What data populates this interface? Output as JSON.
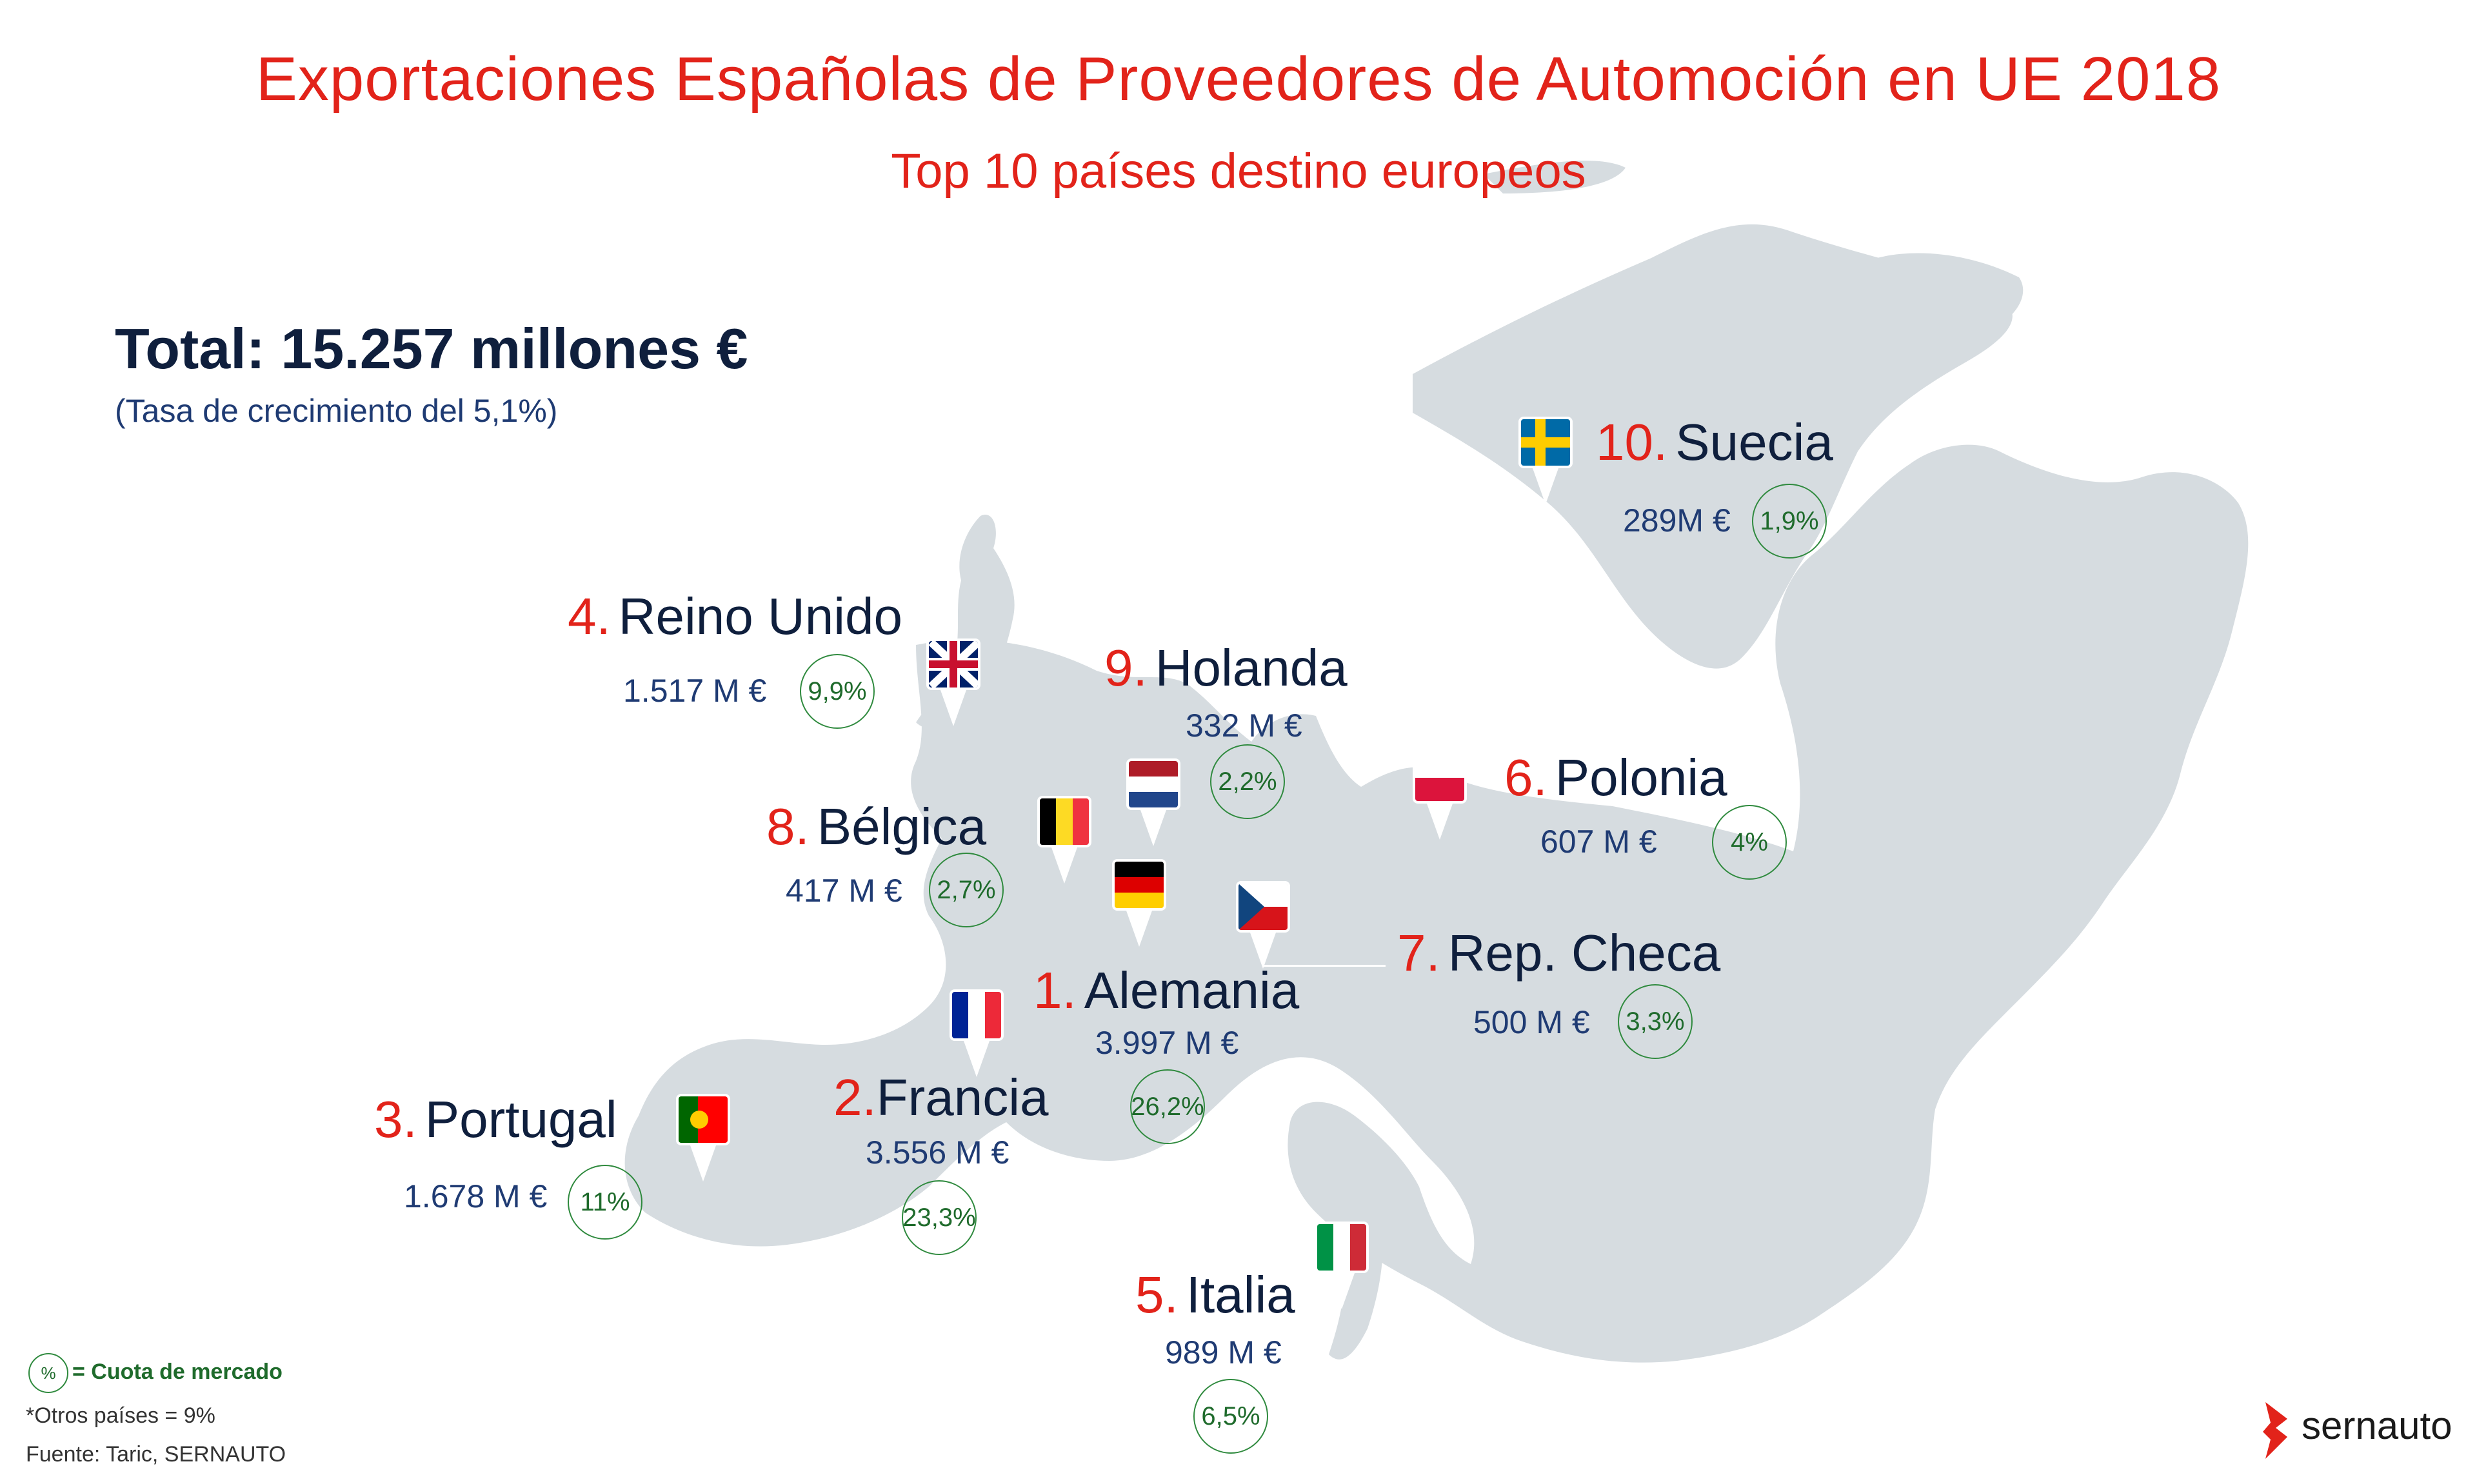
{
  "title": "Exportaciones Españolas de Proveedores de Automoción en UE 2018",
  "subtitle": "Top 10 países destino europeos",
  "total": "Total: 15.257 millones €",
  "growth": "(Tasa de crecimiento del 5,1%)",
  "countries": [
    {
      "rank": "1.",
      "name": "Alemania",
      "value": "3.997 M €",
      "share": "26,2%",
      "flag": "germany"
    },
    {
      "rank": "2.",
      "name": "Francia",
      "value": "3.556 M €",
      "share": "23,3%",
      "flag": "france"
    },
    {
      "rank": "3.",
      "name": "Portugal",
      "value": "1.678 M €",
      "share": "11%",
      "flag": "portugal"
    },
    {
      "rank": "4.",
      "name": "Reino Unido",
      "value": "1.517 M €",
      "share": "9,9%",
      "flag": "united-kingdom"
    },
    {
      "rank": "5.",
      "name": "Italia",
      "value": "989 M €",
      "share": "6,5%",
      "flag": "italy"
    },
    {
      "rank": "6.",
      "name": "Polonia",
      "value": "607 M €",
      "share": "4%",
      "flag": "poland"
    },
    {
      "rank": "7.",
      "name": "Rep. Checa",
      "value": "500 M €",
      "share": "3,3%",
      "flag": "czech-republic"
    },
    {
      "rank": "8.",
      "name": "Bélgica",
      "value": "417 M €",
      "share": "2,7%",
      "flag": "belgium"
    },
    {
      "rank": "9.",
      "name": "Holanda",
      "value": "332 M €",
      "share": "2,2%",
      "flag": "netherlands"
    },
    {
      "rank": "10.",
      "name": "Suecia",
      "value": "289M €",
      "share": "1,9%",
      "flag": "sweden"
    }
  ],
  "legend": {
    "symbol": "%",
    "text": "= Cuota de mercado"
  },
  "notes": {
    "others": "*Otros países = 9%",
    "source": "Fuente: Taric, SERNAUTO"
  },
  "brand": "sernauto",
  "colors": {
    "accent": "#e2231a",
    "navy": "#0f1f3d",
    "share": "#2f8a3e",
    "land": "#d6dce0"
  }
}
